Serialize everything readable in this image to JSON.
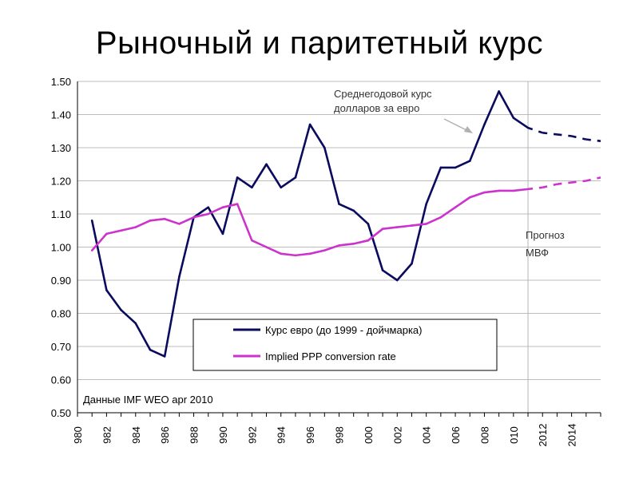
{
  "slide": {
    "title": "Рыночный и паритетный курс"
  },
  "chart_data": {
    "type": "line",
    "title": "Рыночный и паритетный курс",
    "ylim": [
      0.5,
      1.5
    ],
    "y_ticks": [
      "1.50",
      "1.40",
      "1.30",
      "1.20",
      "1.10",
      "1.00",
      "0.90",
      "0.80",
      "0.70",
      "0.60",
      "0.50"
    ],
    "x_ticks": [
      "1980",
      "1982",
      "1984",
      "1986",
      "1988",
      "1990",
      "1992",
      "1994",
      "1996",
      "1998",
      "2000",
      "2002",
      "2004",
      "2006",
      "2008",
      "2010",
      "2012",
      "2014"
    ],
    "x_tick_labels": [
      "980",
      "982",
      "984",
      "986",
      "988",
      "990",
      "992",
      "994",
      "996",
      "998",
      "000",
      "002",
      "004",
      "006",
      "008",
      "010",
      "2012",
      "2014"
    ],
    "forecast_start_year": 2011,
    "series": [
      {
        "name": "Курс евро (до 1999 - дойчмарка)",
        "color": "#0a0a5e",
        "x": [
          1981,
          1982,
          1983,
          1984,
          1985,
          1986,
          1987,
          1988,
          1989,
          1990,
          1991,
          1992,
          1993,
          1994,
          1995,
          1996,
          1997,
          1998,
          1999,
          2000,
          2001,
          2002,
          2003,
          2004,
          2005,
          2006,
          2007,
          2008,
          2009,
          2010,
          2011,
          2012,
          2013,
          2014,
          2015,
          2016
        ],
        "values": [
          1.08,
          0.87,
          0.81,
          0.77,
          0.69,
          0.67,
          0.91,
          1.09,
          1.12,
          1.04,
          1.21,
          1.18,
          1.25,
          1.18,
          1.21,
          1.37,
          1.3,
          1.13,
          1.11,
          1.07,
          0.93,
          0.9,
          0.95,
          1.13,
          1.24,
          1.24,
          1.26,
          1.37,
          1.47,
          1.39,
          1.36,
          1.345,
          1.34,
          1.335,
          1.325,
          1.32
        ]
      },
      {
        "name": "Implied PPP conversion rate",
        "color": "#cc33cc",
        "x": [
          1981,
          1982,
          1983,
          1984,
          1985,
          1986,
          1987,
          1988,
          1989,
          1990,
          1991,
          1992,
          1993,
          1994,
          1995,
          1996,
          1997,
          1998,
          1999,
          2000,
          2001,
          2002,
          2003,
          2004,
          2005,
          2006,
          2007,
          2008,
          2009,
          2010,
          2011,
          2012,
          2013,
          2014,
          2015,
          2016
        ],
        "values": [
          0.99,
          1.04,
          1.05,
          1.06,
          1.08,
          1.085,
          1.07,
          1.09,
          1.1,
          1.12,
          1.13,
          1.02,
          1.0,
          0.98,
          0.975,
          0.98,
          0.99,
          1.005,
          1.01,
          1.02,
          1.055,
          1.06,
          1.065,
          1.07,
          1.09,
          1.12,
          1.15,
          1.165,
          1.17,
          1.17,
          1.175,
          1.18,
          1.19,
          1.195,
          1.2,
          1.21
        ]
      }
    ],
    "annotations": {
      "avg_rate_line1": "Среднегодовой курс",
      "avg_rate_line2": "долларов за евро",
      "forecast_line1": "Прогноз",
      "forecast_line2": "МВФ",
      "source": "Данные IMF WEO apr 2010"
    },
    "legend": {
      "position": "lower-center",
      "items": [
        "Курс евро (до 1999 - дойчмарка)",
        "Implied PPP conversion rate"
      ]
    }
  }
}
